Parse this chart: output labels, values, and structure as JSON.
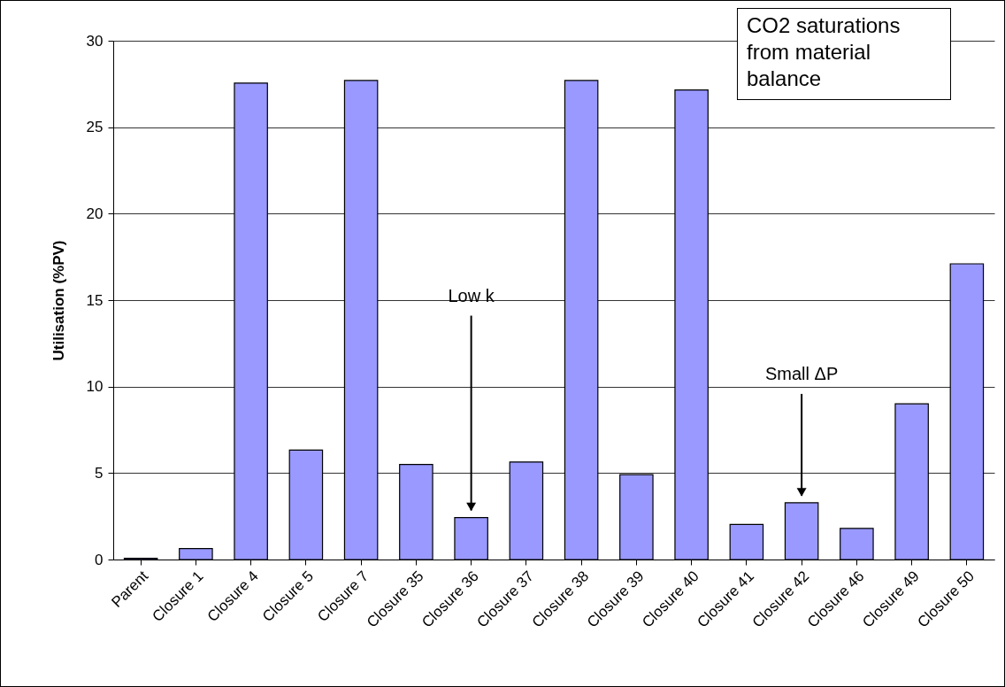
{
  "chart_data": {
    "type": "bar",
    "ylabel": "Utilisation (%PV)",
    "categories": [
      "Parent",
      "Closure 1",
      "Closure 4",
      "Closure 5",
      "Closure 7",
      "Closure 35",
      "Closure 36",
      "Closure 37",
      "Closure 38",
      "Closure 39",
      "Closure 40",
      "Closure 41",
      "Closure 42",
      "Closure 46",
      "Closure 49",
      "Closure 50"
    ],
    "values": [
      0.07,
      0.63,
      27.55,
      6.33,
      27.7,
      5.5,
      2.43,
      5.64,
      27.7,
      4.91,
      27.15,
      2.03,
      3.28,
      1.8,
      9.0,
      17.1
    ],
    "color": "#9999ff",
    "ylim": [
      0,
      30
    ],
    "yticks": [
      0,
      5,
      10,
      15,
      20,
      25,
      30
    ],
    "grid": "y",
    "annotations": [
      "CO2 saturations from material balance",
      {
        "text": "Low k",
        "x": "Closure 36",
        "y": 2.43
      },
      {
        "text": "Small ΔP",
        "x": "Closure 42",
        "y": 3.28
      }
    ]
  }
}
